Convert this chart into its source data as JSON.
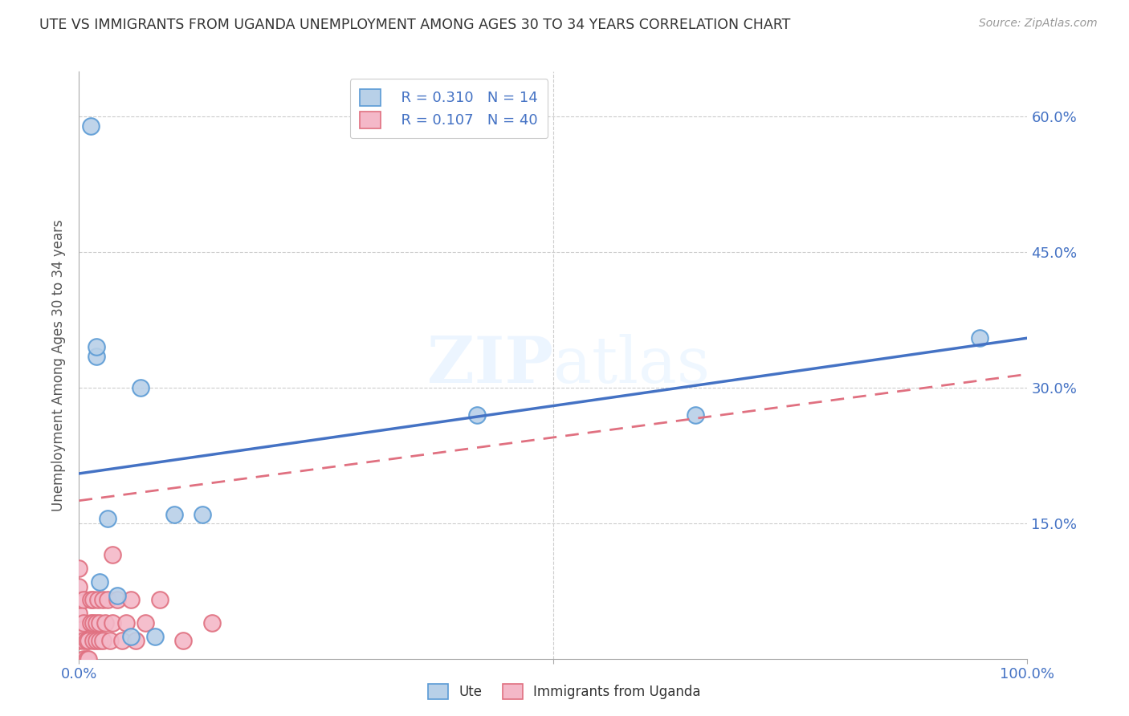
{
  "title": "UTE VS IMMIGRANTS FROM UGANDA UNEMPLOYMENT AMONG AGES 30 TO 34 YEARS CORRELATION CHART",
  "source": "Source: ZipAtlas.com",
  "ylabel": "Unemployment Among Ages 30 to 34 years",
  "watermark": "ZIPatlas",
  "xlim": [
    0,
    1.0
  ],
  "ylim": [
    0,
    0.65
  ],
  "legend_r_ute": "R = 0.310",
  "legend_n_ute": "N = 14",
  "legend_r_uganda": "R = 0.107",
  "legend_n_uganda": "N = 40",
  "ute_color": "#b8d0e8",
  "ute_edge_color": "#5b9bd5",
  "uganda_color": "#f4b8c8",
  "uganda_edge_color": "#e07080",
  "ute_line_color": "#4472c4",
  "uganda_line_color": "#e07080",
  "ute_line": [
    0.0,
    0.205,
    1.0,
    0.355
  ],
  "uganda_line": [
    0.0,
    0.175,
    1.0,
    0.315
  ],
  "ute_points_x": [
    0.012,
    0.018,
    0.018,
    0.022,
    0.03,
    0.04,
    0.055,
    0.065,
    0.08,
    0.13,
    0.42,
    0.95,
    0.65,
    0.1
  ],
  "ute_points_y": [
    0.59,
    0.335,
    0.345,
    0.085,
    0.155,
    0.07,
    0.025,
    0.3,
    0.025,
    0.16,
    0.27,
    0.355,
    0.27,
    0.16
  ],
  "uganda_points_x": [
    0.0,
    0.0,
    0.0,
    0.0,
    0.0,
    0.0,
    0.005,
    0.005,
    0.005,
    0.005,
    0.008,
    0.008,
    0.01,
    0.01,
    0.012,
    0.012,
    0.015,
    0.015,
    0.015,
    0.018,
    0.018,
    0.02,
    0.022,
    0.022,
    0.025,
    0.025,
    0.028,
    0.03,
    0.033,
    0.035,
    0.04,
    0.045,
    0.05,
    0.055,
    0.06,
    0.07,
    0.085,
    0.11,
    0.14,
    0.035
  ],
  "uganda_points_y": [
    0.02,
    0.035,
    0.05,
    0.065,
    0.08,
    0.1,
    0.0,
    0.02,
    0.04,
    0.065,
    0.0,
    0.02,
    0.0,
    0.02,
    0.04,
    0.065,
    0.02,
    0.04,
    0.065,
    0.02,
    0.04,
    0.065,
    0.02,
    0.04,
    0.065,
    0.02,
    0.04,
    0.065,
    0.02,
    0.04,
    0.065,
    0.02,
    0.04,
    0.065,
    0.02,
    0.04,
    0.065,
    0.02,
    0.04,
    0.115
  ],
  "background_color": "#ffffff",
  "grid_color": "#cccccc"
}
